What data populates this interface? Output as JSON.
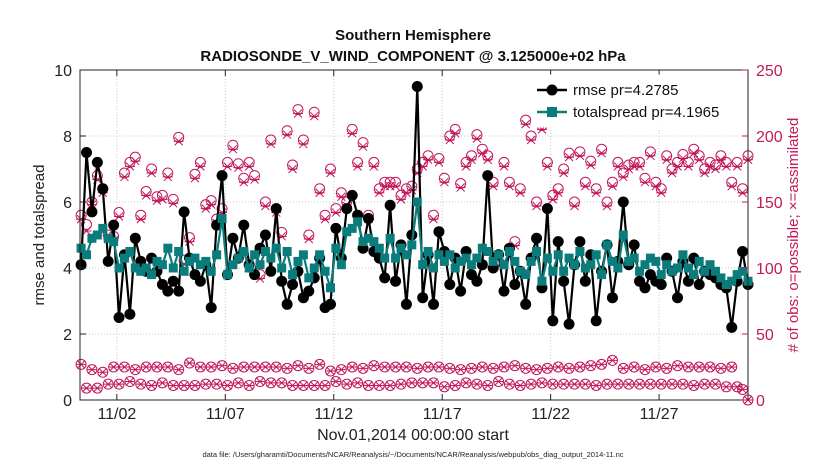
{
  "chart_data": {
    "type": "line",
    "title_line1": "Southern Hemisphere",
    "title_line2": "RADIOSONDE_V_WIND_COMPONENT @ 3.125000e+02 hPa",
    "xlabel": "Nov.01,2014 00:00:00 start",
    "ylabel_left": "rmse and totalspread",
    "ylabel_right": "# of obs: o=possible; ×=assimilated",
    "footer": "data file: /Users/gharamti/Documents/NCAR/Reanalysis/~/Documents/NCAR/Reanalysis/webpub/obs_diag_output_2014-11.nc",
    "xlim_days": [
      0.3,
      31.1
    ],
    "x_ticks": [
      {
        "day": 2,
        "label": "11/02"
      },
      {
        "day": 7,
        "label": "11/07"
      },
      {
        "day": 12,
        "label": "11/12"
      },
      {
        "day": 17,
        "label": "11/17"
      },
      {
        "day": 22,
        "label": "11/22"
      },
      {
        "day": 27,
        "label": "11/27"
      }
    ],
    "y_left": {
      "lim": [
        0,
        10
      ],
      "ticks": [
        0,
        2,
        4,
        6,
        8,
        10
      ]
    },
    "y_right": {
      "lim": [
        0,
        250
      ],
      "ticks": [
        0,
        50,
        100,
        150,
        200,
        250
      ]
    },
    "x_days": [
      0.35,
      0.6,
      0.85,
      1.1,
      1.35,
      1.6,
      1.85,
      2.1,
      2.35,
      2.6,
      2.85,
      3.1,
      3.35,
      3.6,
      3.85,
      4.1,
      4.35,
      4.6,
      4.85,
      5.1,
      5.35,
      5.6,
      5.85,
      6.1,
      6.35,
      6.6,
      6.85,
      7.1,
      7.35,
      7.6,
      7.85,
      8.1,
      8.35,
      8.6,
      8.85,
      9.1,
      9.35,
      9.6,
      9.85,
      10.1,
      10.35,
      10.6,
      10.85,
      11.1,
      11.35,
      11.6,
      11.85,
      12.1,
      12.35,
      12.6,
      12.85,
      13.1,
      13.35,
      13.6,
      13.85,
      14.1,
      14.35,
      14.6,
      14.85,
      15.1,
      15.35,
      15.6,
      15.85,
      16.1,
      16.35,
      16.6,
      16.85,
      17.1,
      17.35,
      17.6,
      17.85,
      18.1,
      18.35,
      18.6,
      18.85,
      19.1,
      19.35,
      19.6,
      19.85,
      20.1,
      20.35,
      20.6,
      20.85,
      21.1,
      21.35,
      21.6,
      21.85,
      22.1,
      22.35,
      22.6,
      22.85,
      23.1,
      23.35,
      23.6,
      23.85,
      24.1,
      24.35,
      24.6,
      24.85,
      25.1,
      25.35,
      25.6,
      25.85,
      26.1,
      26.35,
      26.6,
      26.85,
      27.1,
      27.35,
      27.6,
      27.85,
      28.1,
      28.35,
      28.6,
      28.85,
      29.1,
      29.35,
      29.6,
      29.85,
      30.1,
      30.35,
      30.6,
      30.85,
      31.1
    ],
    "series": [
      {
        "name": "rmse pr=4.2785",
        "color": "#000000",
        "marker": "circle",
        "values": [
          4.1,
          7.5,
          5.7,
          7.2,
          6.4,
          4.2,
          5.3,
          2.5,
          4.4,
          2.6,
          4.9,
          4.2,
          3.9,
          4.3,
          3.9,
          3.5,
          3.3,
          3.6,
          3.3,
          5.7,
          4.3,
          3.8,
          3.6,
          4.1,
          2.8,
          5.3,
          6.8,
          3.8,
          4.9,
          4.3,
          5.3,
          4.1,
          3.8,
          4.6,
          5.0,
          3.9,
          5.8,
          3.6,
          2.9,
          3.5,
          3.9,
          3.1,
          3.3,
          3.7,
          4.3,
          2.8,
          2.9,
          5.2,
          4.3,
          5.8,
          6.2,
          5.6,
          4.6,
          5.5,
          4.5,
          4.3,
          3.7,
          5.9,
          3.6,
          4.7,
          2.9,
          5.0,
          9.5,
          3.1,
          4.4,
          2.9,
          5.1,
          4.5,
          3.5,
          4.3,
          3.3,
          4.5,
          3.8,
          3.6,
          4.1,
          6.8,
          4.0,
          4.4,
          3.3,
          4.6,
          3.5,
          3.9,
          2.9,
          4.3,
          4.9,
          3.4,
          5.8,
          2.4,
          4.8,
          3.6,
          2.3,
          4.1,
          4.8,
          3.6,
          4.4,
          2.4,
          3.9,
          4.7,
          3.1,
          4.2,
          6.0,
          4.1,
          4.7,
          3.6,
          3.4,
          3.8,
          3.6,
          3.5,
          4.3,
          3.9,
          3.1,
          4.2,
          3.6,
          4.3,
          3.5,
          3.9,
          3.8,
          3.7,
          3.5,
          3.4,
          2.2,
          3.6,
          4.5,
          3.5
        ]
      },
      {
        "name": "totalspread pr=4.1965",
        "color": "#0a7c7c",
        "marker": "square",
        "values": [
          4.6,
          4.4,
          4.9,
          5.0,
          5.2,
          4.9,
          4.8,
          4.0,
          4.3,
          4.5,
          4.0,
          3.9,
          4.0,
          3.8,
          4.2,
          4.1,
          4.6,
          4.0,
          4.5,
          3.9,
          4.2,
          4.3,
          4.1,
          4.2,
          3.9,
          4.4,
          5.5,
          3.8,
          4.1,
          4.3,
          4.5,
          4.0,
          4.4,
          4.1,
          4.5,
          4.3,
          4.6,
          4.0,
          4.5,
          3.8,
          4.2,
          4.4,
          3.7,
          4.0,
          4.4,
          3.9,
          3.4,
          4.6,
          4.1,
          5.1,
          5.2,
          5.4,
          4.8,
          4.9,
          4.8,
          4.6,
          4.3,
          4.9,
          4.3,
          4.6,
          4.4,
          4.7,
          6.0,
          4.1,
          4.5,
          4.0,
          4.4,
          4.2,
          4.4,
          4.0,
          4.2,
          4.3,
          4.1,
          4.3,
          4.6,
          4.5,
          4.2,
          4.4,
          4.1,
          4.5,
          4.2,
          3.9,
          3.8,
          4.2,
          4.5,
          3.6,
          4.3,
          3.9,
          4.4,
          3.9,
          4.3,
          4.1,
          4.5,
          4.0,
          4.1,
          4.4,
          3.8,
          4.7,
          4.2,
          4.0,
          5.0,
          4.2,
          4.3,
          3.9,
          4.1,
          4.3,
          4.2,
          3.8,
          4.1,
          3.9,
          4.0,
          4.4,
          4.0,
          3.8,
          4.2,
          3.9,
          4.1,
          3.9,
          3.7,
          3.5,
          3.6,
          3.8,
          3.9,
          3.6
        ]
      }
    ],
    "obs_color": "#c2185b",
    "obs_possible": [
      140,
      133,
      150,
      170,
      160,
      125,
      124,
      142,
      172,
      180,
      184,
      140,
      158,
      175,
      154,
      155,
      172,
      152,
      199,
      106,
      123,
      171,
      180,
      148,
      151,
      137,
      145,
      180,
      193,
      179,
      168,
      180,
      170,
      95,
      150,
      197,
      145,
      127,
      204,
      178,
      220,
      197,
      125,
      218,
      160,
      140,
      175,
      145,
      157,
      150,
      205,
      180,
      195,
      140,
      180,
      160,
      165,
      165,
      165,
      155,
      160,
      162,
      175,
      180,
      185,
      140,
      183,
      168,
      200,
      205,
      164,
      180,
      185,
      201,
      190,
      185,
      165,
      105,
      180,
      165,
      120,
      160,
      212,
      200,
      150,
      208,
      180,
      155,
      160,
      175,
      187,
      150,
      188,
      165,
      181,
      160,
      190,
      150,
      165,
      180,
      172,
      178,
      180,
      180,
      168,
      188,
      165,
      160,
      185,
      175,
      180,
      186,
      180,
      190,
      185,
      175,
      180,
      178,
      185,
      180,
      165,
      180,
      160,
      185
    ],
    "obs_assimilated": [
      137,
      128,
      148,
      167,
      157,
      122,
      121,
      139,
      169,
      177,
      181,
      137,
      155,
      172,
      151,
      152,
      169,
      149,
      196,
      103,
      120,
      168,
      177,
      145,
      148,
      134,
      142,
      177,
      190,
      176,
      165,
      177,
      167,
      92,
      147,
      194,
      142,
      124,
      201,
      175,
      217,
      194,
      122,
      215,
      157,
      137,
      172,
      142,
      154,
      147,
      202,
      177,
      192,
      137,
      177,
      157,
      162,
      162,
      162,
      152,
      157,
      159,
      172,
      177,
      182,
      137,
      180,
      165,
      197,
      202,
      161,
      177,
      182,
      198,
      187,
      182,
      162,
      102,
      177,
      162,
      117,
      157,
      209,
      197,
      147,
      205,
      177,
      152,
      157,
      172,
      184,
      147,
      185,
      162,
      178,
      157,
      187,
      147,
      162,
      177,
      169,
      175,
      177,
      177,
      165,
      185,
      162,
      157,
      182,
      172,
      177,
      183,
      177,
      187,
      182,
      172,
      177,
      175,
      182,
      177,
      162,
      177,
      157,
      182
    ],
    "obs_low_possible": [
      27,
      9,
      23,
      9,
      21,
      12,
      25,
      12,
      25,
      14,
      23,
      12,
      25,
      11,
      25,
      13,
      25,
      11,
      23,
      11,
      28,
      11,
      25,
      12,
      25,
      12,
      26,
      11,
      24,
      13,
      25,
      11,
      25,
      14,
      25,
      13,
      25,
      13,
      24,
      11,
      26,
      11,
      24,
      11,
      27,
      11,
      22,
      14,
      23,
      12,
      25,
      13,
      24,
      11,
      26,
      11,
      25,
      11,
      25,
      12,
      25,
      13,
      24,
      13,
      25,
      13,
      25,
      10,
      24,
      11,
      23,
      13,
      24,
      12,
      25,
      11,
      24,
      14,
      25,
      12,
      26,
      11,
      24,
      12,
      23,
      13,
      24,
      12,
      25,
      12,
      24,
      12,
      25,
      12,
      26,
      11,
      27,
      12,
      30,
      12,
      24,
      12,
      25,
      12,
      23,
      12,
      25,
      12,
      24,
      12,
      26,
      12,
      25,
      11,
      25,
      12,
      25,
      12,
      24,
      10,
      25,
      10,
      8,
      0
    ]
  },
  "legend": {
    "entries": [
      "rmse pr=4.2785",
      "totalspread pr=4.1965"
    ],
    "placement": "top-right"
  }
}
